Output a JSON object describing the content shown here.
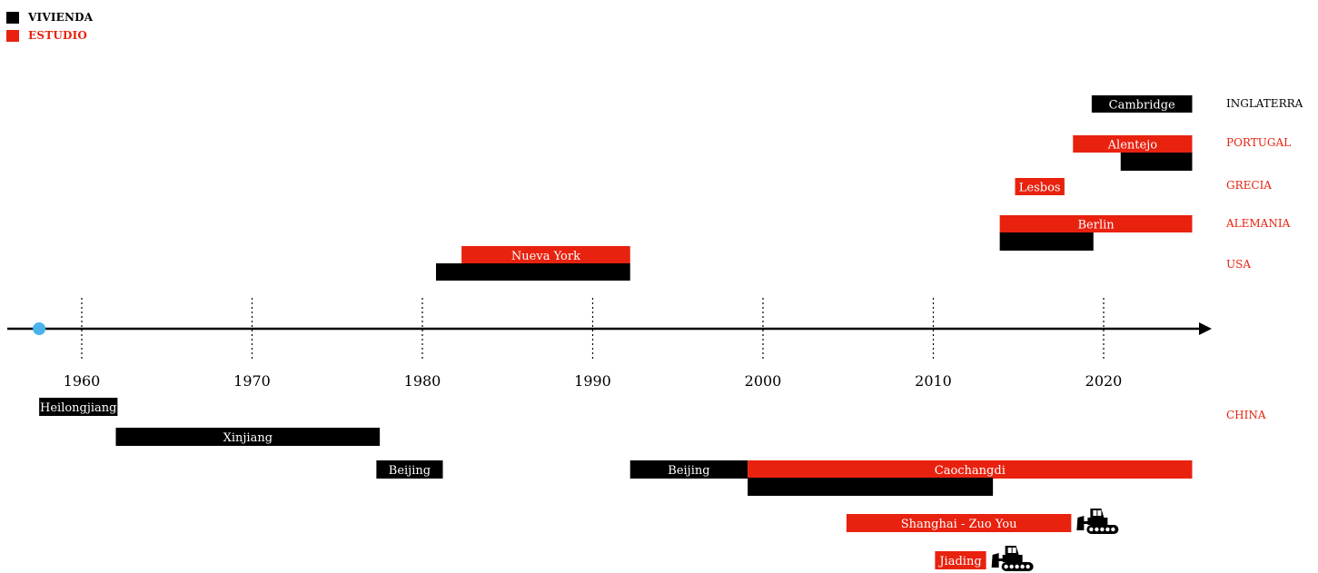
{
  "legend": {
    "vivienda": {
      "label": "VIVIENDA",
      "color": "#000000"
    },
    "estudio": {
      "label": "ESTUDIO",
      "color": "#e8220f"
    }
  },
  "colors": {
    "vivienda": "#000000",
    "estudio": "#e8220f",
    "birth_marker": "#4ab3ee"
  },
  "axis": {
    "ticks": [
      "1960",
      "1970",
      "1980",
      "1990",
      "2000",
      "2010",
      "2020"
    ],
    "birth_year": 1957.5
  },
  "countries": [
    {
      "name": "INGLATERRA",
      "color": "#000000"
    },
    {
      "name": "PORTUGAL",
      "color": "#e8220f"
    },
    {
      "name": "GRECIA",
      "color": "#e8220f"
    },
    {
      "name": "ALEMANIA",
      "color": "#e8220f"
    },
    {
      "name": "USA",
      "color": "#e8220f"
    },
    {
      "name": "CHINA",
      "color": "#e8220f"
    }
  ],
  "periods": [
    {
      "label": "Cambridge",
      "type": "vivienda",
      "start": 2019.3,
      "end": 2025.2
    },
    {
      "label": "Alentejo",
      "type": "estudio",
      "start": 2018.2,
      "end": 2025.2
    },
    {
      "label": "",
      "type": "vivienda",
      "start": 2021.0,
      "end": 2025.2
    },
    {
      "label": "Lesbos",
      "type": "estudio",
      "start": 2014.8,
      "end": 2017.7
    },
    {
      "label": "Berlin",
      "type": "estudio",
      "start": 2013.9,
      "end": 2025.2
    },
    {
      "label": "",
      "type": "vivienda",
      "start": 2013.9,
      "end": 2019.4
    },
    {
      "label": "Nueva York",
      "type": "estudio",
      "start": 1982.3,
      "end": 1992.2
    },
    {
      "label": "",
      "type": "vivienda",
      "start": 1980.8,
      "end": 1992.2
    },
    {
      "label": "Heilongjiang",
      "type": "vivienda",
      "start": 1957.5,
      "end": 1962.1
    },
    {
      "label": "Xinjiang",
      "type": "vivienda",
      "start": 1962.0,
      "end": 1977.5
    },
    {
      "label": "Beijing",
      "type": "vivienda",
      "start": 1977.3,
      "end": 1981.2
    },
    {
      "label": "Beijing",
      "type": "vivienda",
      "start": 1992.2,
      "end": 1999.1
    },
    {
      "label": "Caochangdi",
      "type": "estudio",
      "start": 1999.1,
      "end": 2025.2
    },
    {
      "label": "",
      "type": "vivienda",
      "start": 1999.1,
      "end": 2013.5
    },
    {
      "label": "Shanghai - Zuo You",
      "type": "estudio",
      "start": 2004.9,
      "end": 2018.1,
      "demolished": true
    },
    {
      "label": "Jiading",
      "type": "estudio",
      "start": 2010.1,
      "end": 2013.1,
      "demolished": true
    }
  ]
}
